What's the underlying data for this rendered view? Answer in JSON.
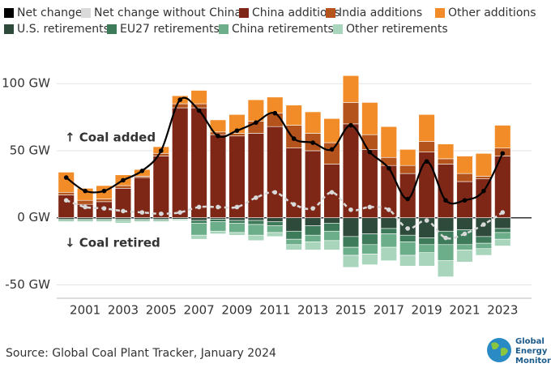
{
  "chart_data": {
    "type": "bar",
    "categories": [
      null,
      "2001",
      null,
      "2003",
      null,
      "2005",
      null,
      "2007",
      null,
      "2009",
      null,
      "2011",
      null,
      "2013",
      null,
      "2015",
      null,
      "2017",
      null,
      "2019",
      null,
      "2021",
      null,
      "2023"
    ],
    "series": [
      {
        "name": "Net change",
        "type": "line",
        "color": "#000000",
        "values": [
          30,
          20,
          20,
          28,
          35,
          50,
          88,
          80,
          61,
          65,
          71,
          78,
          59,
          56,
          51,
          69,
          49,
          37,
          14,
          42,
          13,
          13,
          20,
          48
        ]
      },
      {
        "name": "Net change without China",
        "type": "line",
        "dashed": true,
        "color": "#d9d9d9",
        "values": [
          13,
          8,
          7,
          5,
          4,
          3,
          4,
          8,
          8,
          8,
          15,
          19,
          10,
          7,
          19,
          6,
          8,
          6,
          -8,
          -2,
          -15,
          -12,
          -5,
          4
        ]
      },
      {
        "name": "China additions",
        "type": "bar",
        "color": "#7e2717",
        "values": [
          17,
          10,
          12,
          22,
          30,
          46,
          82,
          82,
          62,
          61,
          63,
          68,
          52,
          50,
          40,
          70,
          51,
          39,
          33,
          49,
          40,
          27,
          29,
          46
        ]
      },
      {
        "name": "India additions",
        "type": "bar",
        "color": "#b4531b",
        "values": [
          2,
          3,
          2,
          2,
          1,
          2,
          3,
          3,
          2,
          2,
          9,
          10,
          17,
          13,
          16,
          16,
          11,
          6,
          6,
          8,
          4,
          6,
          2,
          6
        ]
      },
      {
        "name": "Other additions",
        "type": "bar",
        "color": "#f28c28",
        "values": [
          15,
          9,
          10,
          8,
          5,
          5,
          6,
          10,
          9,
          14,
          16,
          12,
          15,
          16,
          18,
          20,
          24,
          23,
          12,
          20,
          11,
          13,
          17,
          17
        ]
      },
      {
        "name": "U.S. retirements",
        "type": "bar",
        "color": "#2e4a3b",
        "values": [
          -1,
          -1,
          -1,
          -1,
          -1,
          -1,
          -1,
          -2,
          -1,
          -2,
          -2,
          -3,
          -10,
          -6,
          -4,
          -14,
          -12,
          -8,
          -13,
          -15,
          -10,
          -9,
          -14,
          -8
        ]
      },
      {
        "name": "EU27 retirements",
        "type": "bar",
        "color": "#3e7b5b",
        "values": [
          -1,
          -1,
          -1,
          -1,
          -1,
          -1,
          0,
          -2,
          -2,
          -2,
          -3,
          -3,
          -6,
          -7,
          -6,
          -8,
          -8,
          -4,
          -5,
          -5,
          -10,
          -11,
          -5,
          -3
        ]
      },
      {
        "name": "China retirements",
        "type": "bar",
        "color": "#6cae89",
        "values": [
          0,
          0,
          0,
          0,
          0,
          0,
          0,
          -9,
          -7,
          -7,
          -8,
          -5,
          -4,
          -5,
          -7,
          -6,
          -7,
          -10,
          -10,
          -6,
          -12,
          -4,
          -4,
          -5
        ]
      },
      {
        "name": "Other retirements",
        "type": "bar",
        "color": "#a9d5bc",
        "values": [
          -1,
          -1,
          -1,
          -2,
          -1,
          -1,
          -1,
          -3,
          -2,
          -2,
          -4,
          -3,
          -4,
          -6,
          -7,
          -9,
          -8,
          -10,
          -8,
          -10,
          -12,
          -9,
          -5,
          -5
        ]
      }
    ],
    "ylim": [
      -60,
      108
    ],
    "yticks": [
      {
        "value": -50,
        "label": "-50 GW"
      },
      {
        "value": 0,
        "label": "0 GW"
      },
      {
        "value": 50,
        "label": "50 GW"
      },
      {
        "value": 100,
        "label": "100 GW"
      }
    ],
    "grid": true,
    "annotations": [
      "↑ Coal added",
      "↓ Coal retired"
    ],
    "source": "Source: Global Coal Plant Tracker, January 2024",
    "logo": [
      "Global",
      "Energy",
      "Monitor"
    ]
  }
}
